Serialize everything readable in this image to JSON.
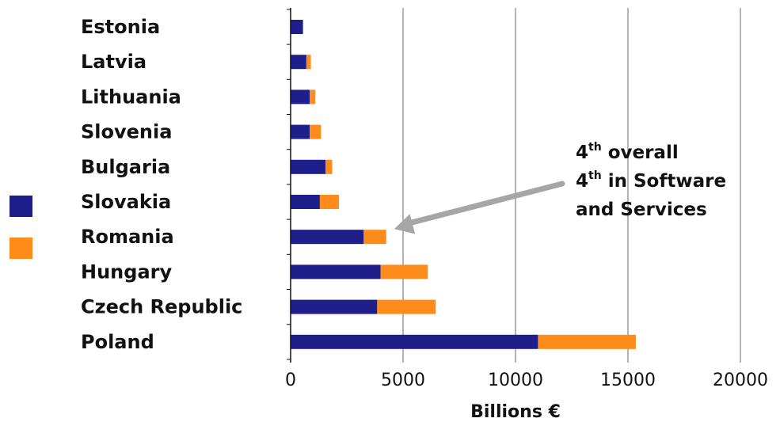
{
  "chart_data": {
    "type": "bar",
    "orientation": "horizontal",
    "stacked": true,
    "categories": [
      "Estonia",
      "Latvia",
      "Lithuania",
      "Slovenia",
      "Bulgaria",
      "Slovakia",
      "Romania",
      "Hungary",
      "Czech Republic",
      "Poland"
    ],
    "series": [
      {
        "color": "#1f1f8c",
        "values": [
          550,
          700,
          850,
          850,
          1550,
          1300,
          3250,
          4000,
          3850,
          11000
        ]
      },
      {
        "color": "#ff8c1a",
        "values": [
          0,
          200,
          250,
          500,
          300,
          850,
          1000,
          2100,
          2600,
          4350
        ]
      }
    ],
    "xlabel": "Billions €",
    "xlim": [
      0,
      20000
    ],
    "x_ticks": [
      "0",
      "5000",
      "10000",
      "15000",
      "20000"
    ],
    "grid": true,
    "legend_position": "left",
    "annotation": {
      "lines": [
        {
          "pre": "4",
          "sup": "th",
          "post": " overall"
        },
        {
          "pre": "4",
          "sup": "th",
          "post": " in Software"
        },
        {
          "pre": "",
          "sup": "",
          "post": "and Services"
        }
      ],
      "points_to": "Romania",
      "arrow_color": "#a6a6a6"
    }
  }
}
